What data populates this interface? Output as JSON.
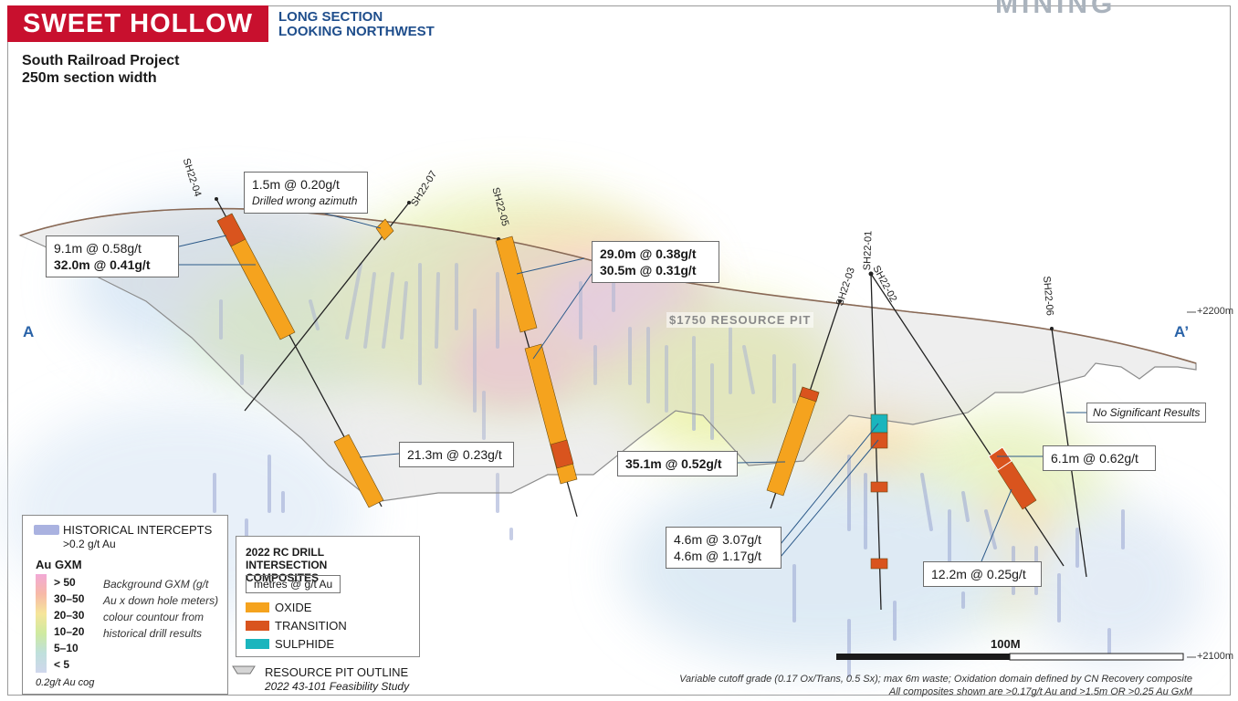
{
  "header": {
    "title": "SWEET HOLLOW",
    "subtitle_line1": "LONG SECTION",
    "subtitle_line2": "LOOKING NORTHWEST",
    "project": "South Railroad Project",
    "section_width": "250m section width",
    "brand_partial": "MINING"
  },
  "section": {
    "left_letter": "A",
    "right_letter": "A’",
    "elev_top": "+2200m",
    "elev_bottom": "+2100m"
  },
  "pit_label": "$1750 RESOURCE PIT",
  "holes": [
    "SH22-04",
    "SH22-07",
    "SH22-05",
    "SH22-03",
    "SH22-01",
    "SH22-02",
    "SH22-06"
  ],
  "intercepts": {
    "sh0407_a": "1.5m @ 0.20g/t",
    "sh0407_note": "Drilled wrong azimuth",
    "sh04_a": "9.1m @ 0.58g/t",
    "sh04_b": "32.0m @ 0.41g/t",
    "sh05_a": "29.0m @ 0.38g/t",
    "sh05_b": "30.5m @ 0.31g/t",
    "sh04_c": "21.3m @ 0.23g/t",
    "sh03_a": "35.1m @ 0.52g/t",
    "sh01_a": "4.6m @ 3.07g/t",
    "sh01_b": "4.6m @ 1.17g/t",
    "sh06_a": "6.1m @ 0.62g/t",
    "sh06_b": "12.2m @ 0.25g/t"
  },
  "no_results": "No Significant Results",
  "legend_hist": {
    "title": "HISTORICAL INTERCEPTS",
    "sub": ">0.2 g/t Au",
    "gxm_title": "Au GXM",
    "classes": [
      "> 50",
      "30–50",
      "20–30",
      "10–20",
      "5–10",
      "< 5"
    ],
    "desc": "Background GXM (g/t Au x down hole meters) colour countour from historical drill results",
    "cog": "0.2g/t Au cog"
  },
  "legend_rc": {
    "title": "2022 RC DRILL INTERSECTION COMPOSITES",
    "unit": "metres @ g/t Au",
    "items": [
      {
        "label": "OXIDE",
        "color": "#f5a31e"
      },
      {
        "label": "TRANSITION",
        "color": "#d9541e"
      },
      {
        "label": "SULPHIDE",
        "color": "#1ab5bd"
      }
    ]
  },
  "pit_legend": {
    "label": "RESOURCE PIT OUTLINE",
    "sub": "2022 43-101 Feasibility Study"
  },
  "scale": "100M",
  "footer_line1": "Variable cutoff grade (0.17 Ox/Trans, 0.5 Sx); max 6m waste; Oxidation domain defined by CN Recovery composite",
  "footer_line2": "All composites shown are >0.17g/t Au and >1.5m OR >0.25 Au GxM",
  "colors": {
    "oxide": "#f5a31e",
    "transition": "#d9541e",
    "sulphide": "#1ab5bd",
    "title_red": "#c8102e",
    "blue": "#1f4e8c"
  }
}
